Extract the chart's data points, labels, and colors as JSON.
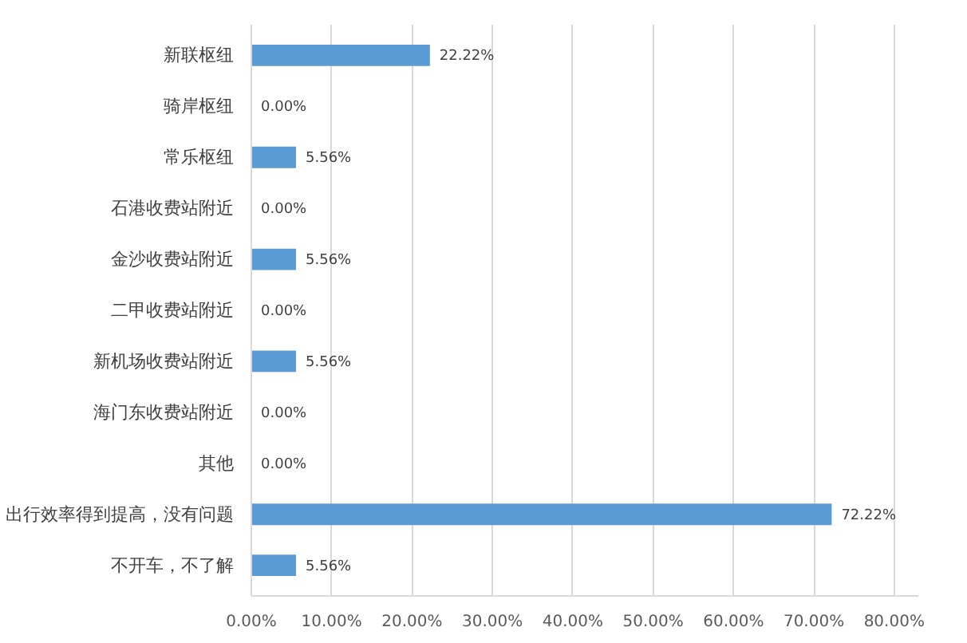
{
  "chart_data": {
    "type": "bar",
    "orientation": "horizontal",
    "categories": [
      "新联枢纽",
      "骑岸枢纽",
      "常乐枢纽",
      "石港收费站附近",
      "金沙收费站附近",
      "二甲收费站附近",
      "新机场收费站附近",
      "海门东收费站附近",
      "其他",
      "出行效率得到提高，没有问题",
      "不开车，不了解"
    ],
    "values": [
      22.22,
      0,
      5.56,
      0,
      5.56,
      0,
      5.56,
      0,
      0,
      72.22,
      5.56
    ],
    "value_labels": [
      "22.22%",
      "0.00%",
      "5.56%",
      "0.00%",
      "5.56%",
      "0.00%",
      "5.56%",
      "0.00%",
      "0.00%",
      "72.22%",
      "5.56%"
    ],
    "color": "#5b9bd5",
    "xlim": [
      0,
      83
    ],
    "xticks": [
      {
        "value": 0,
        "label": "0.00%"
      },
      {
        "value": 10,
        "label": "10.00%"
      },
      {
        "value": 20,
        "label": "20.00%"
      },
      {
        "value": 30,
        "label": "30.00%"
      },
      {
        "value": 40,
        "label": "40.00%"
      },
      {
        "value": 50,
        "label": "50.00%"
      },
      {
        "value": 60,
        "label": "60.00%"
      },
      {
        "value": 70,
        "label": "70.00%"
      },
      {
        "value": 80,
        "label": "80.00%"
      }
    ],
    "grid": "x"
  }
}
